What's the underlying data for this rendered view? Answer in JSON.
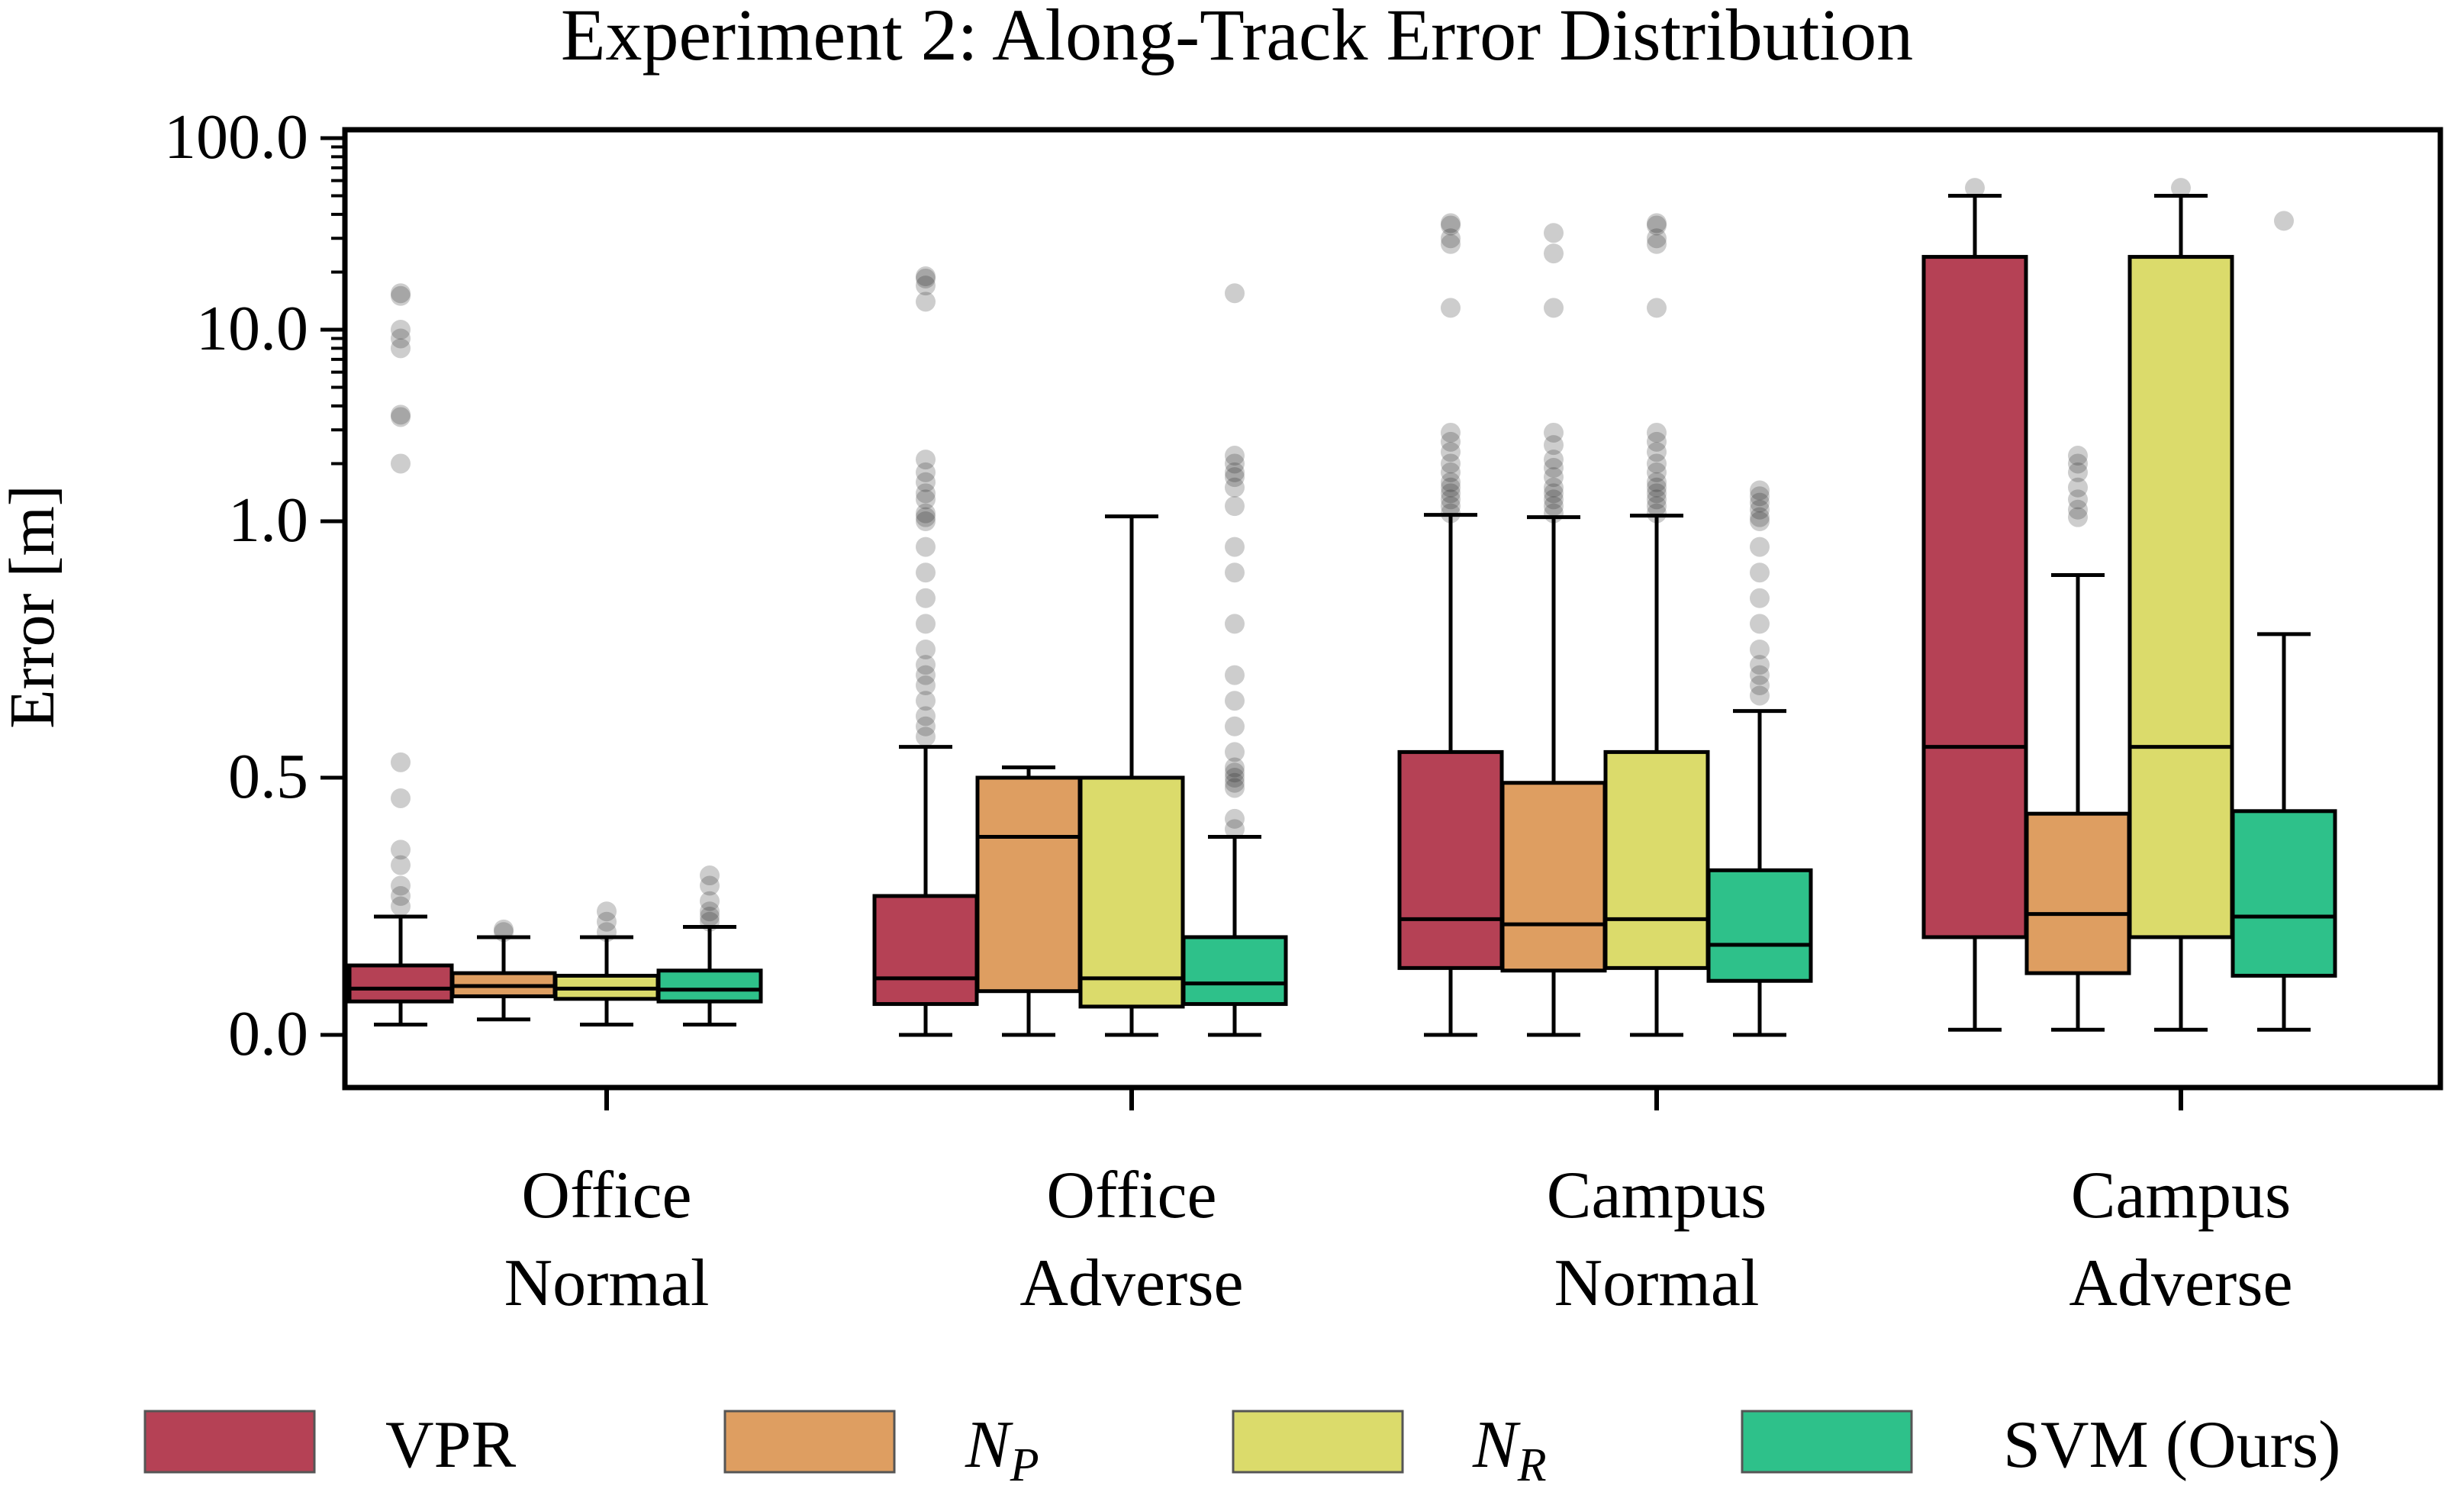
{
  "chart_data": {
    "type": "box",
    "title": "Experiment 2: Along-Track Error Distribution",
    "xlabel": "",
    "ylabel": "Error [m]",
    "yscale": "piecewise: linear 0–0.5, log 0.5–100",
    "y_ticks": [
      "0.0",
      "0.5",
      "1.0",
      "10.0",
      "100.0"
    ],
    "categories": [
      {
        "line1": "Office",
        "line2": "Normal"
      },
      {
        "line1": "Office",
        "line2": "Adverse"
      },
      {
        "line1": "Campus",
        "line2": "Normal"
      },
      {
        "line1": "Campus",
        "line2": "Adverse"
      }
    ],
    "legend": {
      "position": "bottom",
      "entries": [
        {
          "label": "VPR",
          "base": "VPR",
          "sub": ""
        },
        {
          "label": "N_P",
          "base": "N",
          "sub": "P"
        },
        {
          "label": "N_R",
          "base": "N",
          "sub": "R"
        },
        {
          "label": "SVM (Ours)",
          "base": "SVM (Ours)",
          "sub": ""
        }
      ]
    },
    "series": [
      {
        "name": "VPR",
        "color": "#b54155",
        "boxes": [
          {
            "whislo": 0.02,
            "q1": 0.065,
            "med": 0.09,
            "q3": 0.135,
            "whishi": 0.23,
            "fliers": [
              0.25,
              0.27,
              0.29,
              0.33,
              0.36,
              0.46,
              0.53,
              2.0,
              3.5,
              3.6,
              8.0,
              9.0,
              10.0,
              15.0,
              15.5
            ]
          },
          {
            "whislo": 0.0,
            "q1": 0.06,
            "med": 0.11,
            "q3": 0.27,
            "whishi": 0.56,
            "fliers": [
              0.58,
              0.6,
              0.62,
              0.65,
              0.68,
              0.7,
              0.72,
              0.75,
              0.8,
              0.85,
              0.9,
              0.95,
              1.0,
              1.05,
              1.1,
              1.3,
              1.4,
              1.6,
              1.8,
              2.1,
              14.0,
              17.0,
              18.5,
              19.0
            ]
          },
          {
            "whislo": 0.0,
            "q1": 0.13,
            "med": 0.225,
            "q3": 0.55,
            "whishi": 1.08,
            "fliers": [
              1.1,
              1.2,
              1.3,
              1.4,
              1.5,
              1.6,
              1.8,
              2.0,
              2.3,
              2.6,
              2.9,
              13.0,
              28.0,
              30.0,
              35.0,
              36.0
            ]
          },
          {
            "whislo": 0.01,
            "q1": 0.19,
            "med": 0.56,
            "q3": 24.0,
            "whishi": 50.0,
            "fliers": [
              55.0
            ]
          }
        ]
      },
      {
        "name": "N_P",
        "color": "#de9e61",
        "boxes": [
          {
            "whislo": 0.03,
            "q1": 0.075,
            "med": 0.095,
            "q3": 0.12,
            "whishi": 0.19,
            "fliers": [
              0.2,
              0.205
            ]
          },
          {
            "whislo": 0.0,
            "q1": 0.085,
            "med": 0.385,
            "q3": 0.5,
            "whishi": 0.52,
            "fliers": []
          },
          {
            "whislo": 0.0,
            "q1": 0.125,
            "med": 0.215,
            "q3": 0.49,
            "whishi": 1.05,
            "fliers": [
              1.1,
              1.2,
              1.3,
              1.4,
              1.5,
              1.7,
              1.9,
              2.1,
              2.5,
              2.9,
              13.0,
              25.0,
              32.0
            ]
          },
          {
            "whislo": 0.01,
            "q1": 0.12,
            "med": 0.235,
            "q3": 0.43,
            "whishi": 0.895,
            "fliers": [
              1.05,
              1.15,
              1.3,
              1.5,
              1.8,
              2.0,
              2.2
            ]
          }
        ]
      },
      {
        "name": "N_R",
        "color": "#dbdb6b",
        "boxes": [
          {
            "whislo": 0.02,
            "q1": 0.07,
            "med": 0.09,
            "q3": 0.115,
            "whishi": 0.19,
            "fliers": [
              0.2,
              0.22,
              0.24
            ]
          },
          {
            "whislo": 0.0,
            "q1": 0.055,
            "med": 0.11,
            "q3": 0.5,
            "whishi": 1.06,
            "fliers": []
          },
          {
            "whislo": 0.0,
            "q1": 0.13,
            "med": 0.225,
            "q3": 0.55,
            "whishi": 1.07,
            "fliers": [
              1.1,
              1.2,
              1.3,
              1.4,
              1.5,
              1.6,
              1.8,
              2.0,
              2.3,
              2.6,
              2.9,
              13.0,
              28.0,
              30.0,
              35.0,
              36.0
            ]
          },
          {
            "whislo": 0.01,
            "q1": 0.19,
            "med": 0.56,
            "q3": 24.0,
            "whishi": 50.0,
            "fliers": [
              55.0
            ]
          }
        ]
      },
      {
        "name": "SVM (Ours)",
        "color": "#2ec18a",
        "boxes": [
          {
            "whislo": 0.02,
            "q1": 0.065,
            "med": 0.088,
            "q3": 0.125,
            "whishi": 0.21,
            "fliers": [
              0.22,
              0.23,
              0.24,
              0.26,
              0.29,
              0.31
            ]
          },
          {
            "whislo": 0.0,
            "q1": 0.06,
            "med": 0.1,
            "q3": 0.19,
            "whishi": 0.385,
            "fliers": [
              0.4,
              0.42,
              0.48,
              0.49,
              0.5,
              0.51,
              0.52,
              0.55,
              0.6,
              0.65,
              0.7,
              0.8,
              0.9,
              0.95,
              1.2,
              1.5,
              1.7,
              1.8,
              2.0,
              2.2,
              15.5
            ]
          },
          {
            "whislo": 0.0,
            "q1": 0.105,
            "med": 0.175,
            "q3": 0.32,
            "whishi": 0.63,
            "fliers": [
              0.66,
              0.68,
              0.7,
              0.72,
              0.75,
              0.8,
              0.85,
              0.9,
              0.95,
              1.0,
              1.05,
              1.15,
              1.25,
              1.35,
              1.45
            ]
          },
          {
            "whislo": 0.01,
            "q1": 0.115,
            "med": 0.23,
            "q3": 0.435,
            "whishi": 0.78,
            "fliers": [
              37.0
            ]
          }
        ]
      }
    ]
  }
}
